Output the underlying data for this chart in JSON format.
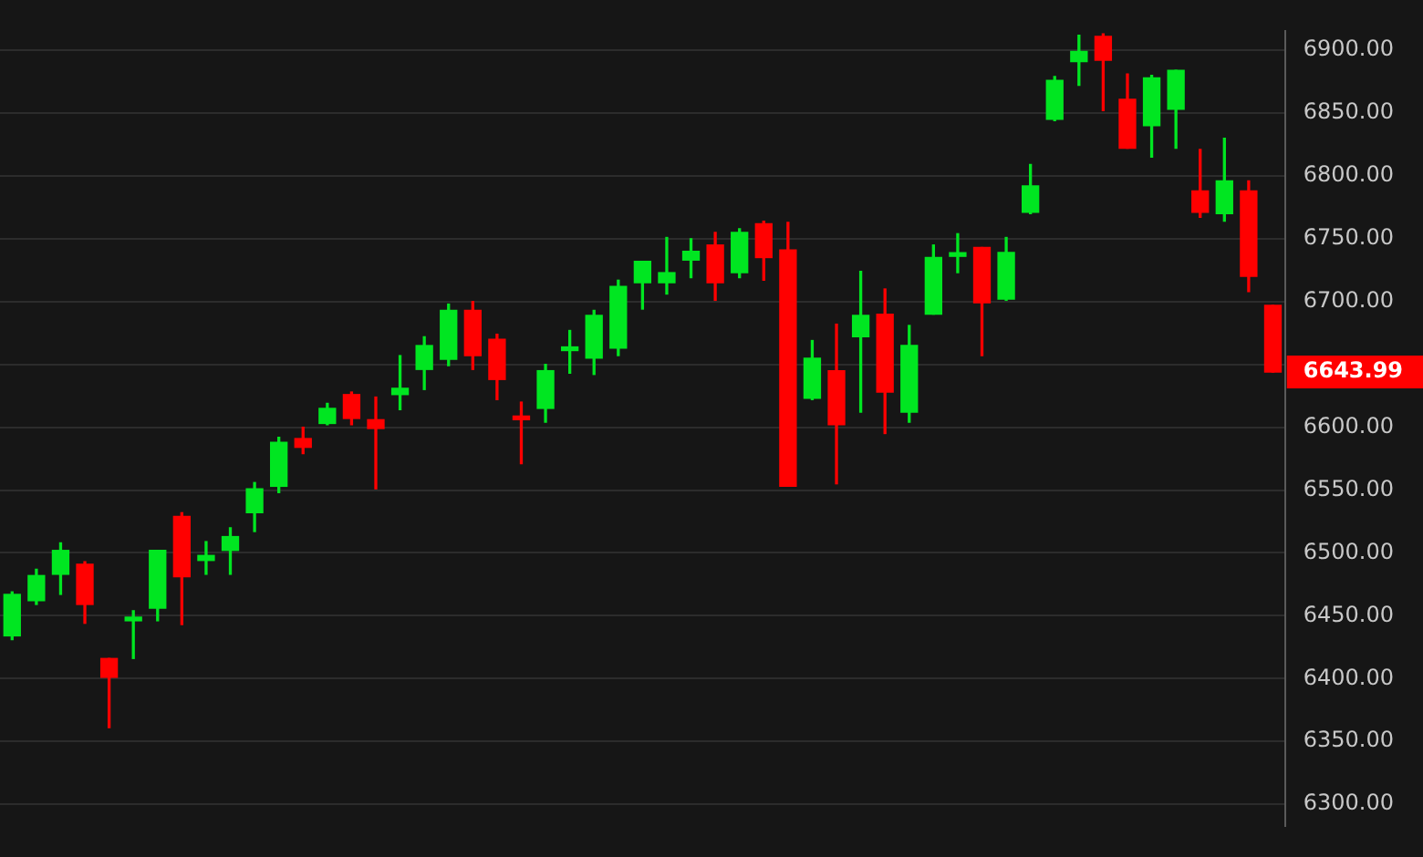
{
  "chart_data": {
    "type": "candlestick",
    "categories": [
      null,
      null,
      null,
      null,
      null,
      null,
      null,
      null,
      null,
      null,
      null,
      null,
      null,
      null,
      null,
      null,
      null,
      null,
      null,
      null,
      null,
      null,
      null,
      null,
      null,
      null,
      null,
      null,
      null,
      null,
      null,
      null,
      null,
      null,
      null,
      null,
      null,
      null,
      null,
      null,
      null,
      null,
      null,
      null,
      null,
      null,
      null,
      null,
      null,
      null,
      null,
      null,
      null
    ],
    "ohlc": [
      [
        6434,
        6469,
        6431,
        6467
      ],
      [
        6462,
        6487,
        6459,
        6482
      ],
      [
        6483,
        6508,
        6467,
        6502
      ],
      [
        6491,
        6493,
        6444,
        6459
      ],
      [
        6416,
        6416,
        6361,
        6401
      ],
      [
        6446,
        6454,
        6416,
        6448
      ],
      [
        6456,
        6502,
        6446,
        6502
      ],
      [
        6529,
        6532,
        6443,
        6481
      ],
      [
        6494,
        6509,
        6483,
        6498
      ],
      [
        6502,
        6520,
        6483,
        6513
      ],
      [
        6532,
        6556,
        6517,
        6551
      ],
      [
        6553,
        6592,
        6548,
        6588
      ],
      [
        6591,
        6600,
        6579,
        6584
      ],
      [
        6603,
        6619,
        6602,
        6615
      ],
      [
        6626,
        6628,
        6602,
        6607
      ],
      [
        6606,
        6624,
        6551,
        6599
      ],
      [
        6626,
        6657,
        6614,
        6631
      ],
      [
        6646,
        6672,
        6630,
        6665
      ],
      [
        6654,
        6698,
        6649,
        6693
      ],
      [
        6693,
        6700,
        6646,
        6657
      ],
      [
        6670,
        6674,
        6622,
        6638
      ],
      [
        6608,
        6620,
        6571,
        6606
      ],
      [
        6615,
        6650,
        6604,
        6645
      ],
      [
        6661,
        6677,
        6643,
        6662
      ],
      [
        6655,
        6693,
        6642,
        6689
      ],
      [
        6663,
        6717,
        6657,
        6712
      ],
      [
        6715,
        6732,
        6694,
        6732
      ],
      [
        6715,
        6751,
        6706,
        6723
      ],
      [
        6733,
        6750,
        6719,
        6740
      ],
      [
        6745,
        6755,
        6701,
        6715
      ],
      [
        6723,
        6758,
        6719,
        6755
      ],
      [
        6762,
        6764,
        6717,
        6735
      ],
      [
        6741,
        6763,
        6553,
        6553
      ],
      [
        6623,
        6669,
        6622,
        6655
      ],
      [
        6645,
        6682,
        6555,
        6602
      ],
      [
        6672,
        6724,
        6612,
        6689
      ],
      [
        6690,
        6710,
        6595,
        6628
      ],
      [
        6612,
        6681,
        6604,
        6665
      ],
      [
        6690,
        6745,
        6690,
        6735
      ],
      [
        6736,
        6754,
        6723,
        6737
      ],
      [
        6743,
        6743,
        6657,
        6699
      ],
      [
        6702,
        6751,
        6701,
        6739
      ],
      [
        6771,
        6809,
        6770,
        6792
      ],
      [
        6845,
        6879,
        6844,
        6876
      ],
      [
        6891,
        6912,
        6872,
        6899
      ],
      [
        6911,
        6913,
        6852,
        6892
      ],
      [
        6861,
        6881,
        6822,
        6822
      ],
      [
        6840,
        6880,
        6815,
        6878
      ],
      [
        6853,
        6884,
        6822,
        6884
      ],
      [
        6788,
        6821,
        6767,
        6771
      ],
      [
        6770,
        6830,
        6764,
        6796
      ],
      [
        6788,
        6796,
        6708,
        6720
      ],
      [
        6697,
        6697,
        6643.99,
        6643.99
      ]
    ],
    "colors": [
      "#00e621",
      "#00e621",
      "#00e621",
      "#ff0000",
      "#ff0000",
      "#00e621",
      "#00e621",
      "#ff0000",
      "#00e621",
      "#00e621",
      "#00e621",
      "#00e621",
      "#ff0000",
      "#00e621",
      "#ff0000",
      "#ff0000",
      "#00e621",
      "#00e621",
      "#00e621",
      "#ff0000",
      "#ff0000",
      "#ff0000",
      "#00e621",
      "#00e621",
      "#00e621",
      "#00e621",
      "#00e621",
      "#00e621",
      "#00e621",
      "#ff0000",
      "#00e621",
      "#ff0000",
      "#ff0000",
      "#00e621",
      "#ff0000",
      "#00e621",
      "#ff0000",
      "#00e621",
      "#00e621",
      "#00e621",
      "#ff0000",
      "#00e621",
      "#00e621",
      "#00e621",
      "#00e621",
      "#ff0000",
      "#ff0000",
      "#00e621",
      "#00e621",
      "#ff0000",
      "#00e621",
      "#ff0000",
      "#ff0000"
    ],
    "ylim": [
      6283,
      6915
    ],
    "yticks": [
      {
        "value": 6300,
        "label": "6300.00"
      },
      {
        "value": 6350,
        "label": "6350.00"
      },
      {
        "value": 6400,
        "label": "6400.00"
      },
      {
        "value": 6450,
        "label": "6450.00"
      },
      {
        "value": 6500,
        "label": "6500.00"
      },
      {
        "value": 6550,
        "label": "6550.00"
      },
      {
        "value": 6600,
        "label": "6600.00"
      },
      {
        "value": 6650,
        "label": null
      },
      {
        "value": 6700,
        "label": "6700.00"
      },
      {
        "value": 6750,
        "label": "6750.00"
      },
      {
        "value": 6800,
        "label": "6800.00"
      },
      {
        "value": 6850,
        "label": "6850.00"
      },
      {
        "value": 6900,
        "label": "6900.00"
      }
    ],
    "annotations": [
      "6643.99"
    ],
    "grid": "y",
    "tick_labels": "y",
    "legend": false
  }
}
